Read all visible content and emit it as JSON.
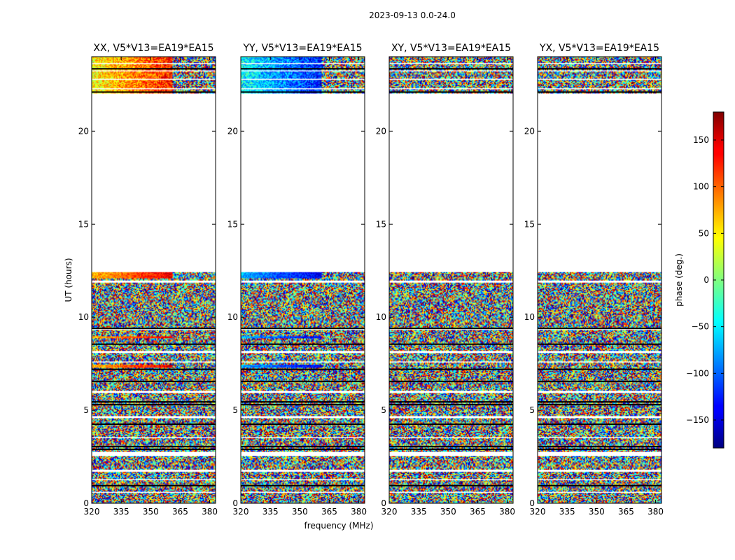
{
  "chart_data": {
    "type": "heatmap",
    "suptitle": "2023-09-13 0.0-24.0",
    "xlabel": "frequency (MHz)",
    "ylabel": "UT (hours)",
    "xlim": [
      320,
      383
    ],
    "ylim": [
      0,
      24
    ],
    "xticks": [
      "320",
      "335",
      "350",
      "365",
      "380"
    ],
    "xtick_values": [
      320,
      335,
      350,
      365,
      380
    ],
    "yticks": [
      "0",
      "5",
      "10",
      "15",
      "20"
    ],
    "ytick_values": [
      0,
      5,
      10,
      15,
      20
    ],
    "panels": [
      {
        "title": "XX, V5*V13=EA19*EA15",
        "pol": "XX"
      },
      {
        "title": "YY, V5*V13=EA19*EA15",
        "pol": "YY"
      },
      {
        "title": "XY, V5*V13=EA19*EA15",
        "pol": "XY"
      },
      {
        "title": "YX, V5*V13=EA19*EA15",
        "pol": "YX"
      }
    ],
    "data_time_ranges_hours": [
      [
        0.0,
        12.45
      ],
      [
        22.05,
        24.0
      ]
    ],
    "gap_hours": [
      [
        12.45,
        22.05
      ]
    ],
    "colorbar": {
      "label": "phase (deg.)",
      "min": -180,
      "max": 180,
      "ticks": [
        "−150",
        "−100",
        "−50",
        "0",
        "50",
        "100",
        "150"
      ],
      "tick_values": [
        -150,
        -100,
        -50,
        0,
        50,
        100,
        150
      ],
      "colormap": "jet"
    }
  }
}
